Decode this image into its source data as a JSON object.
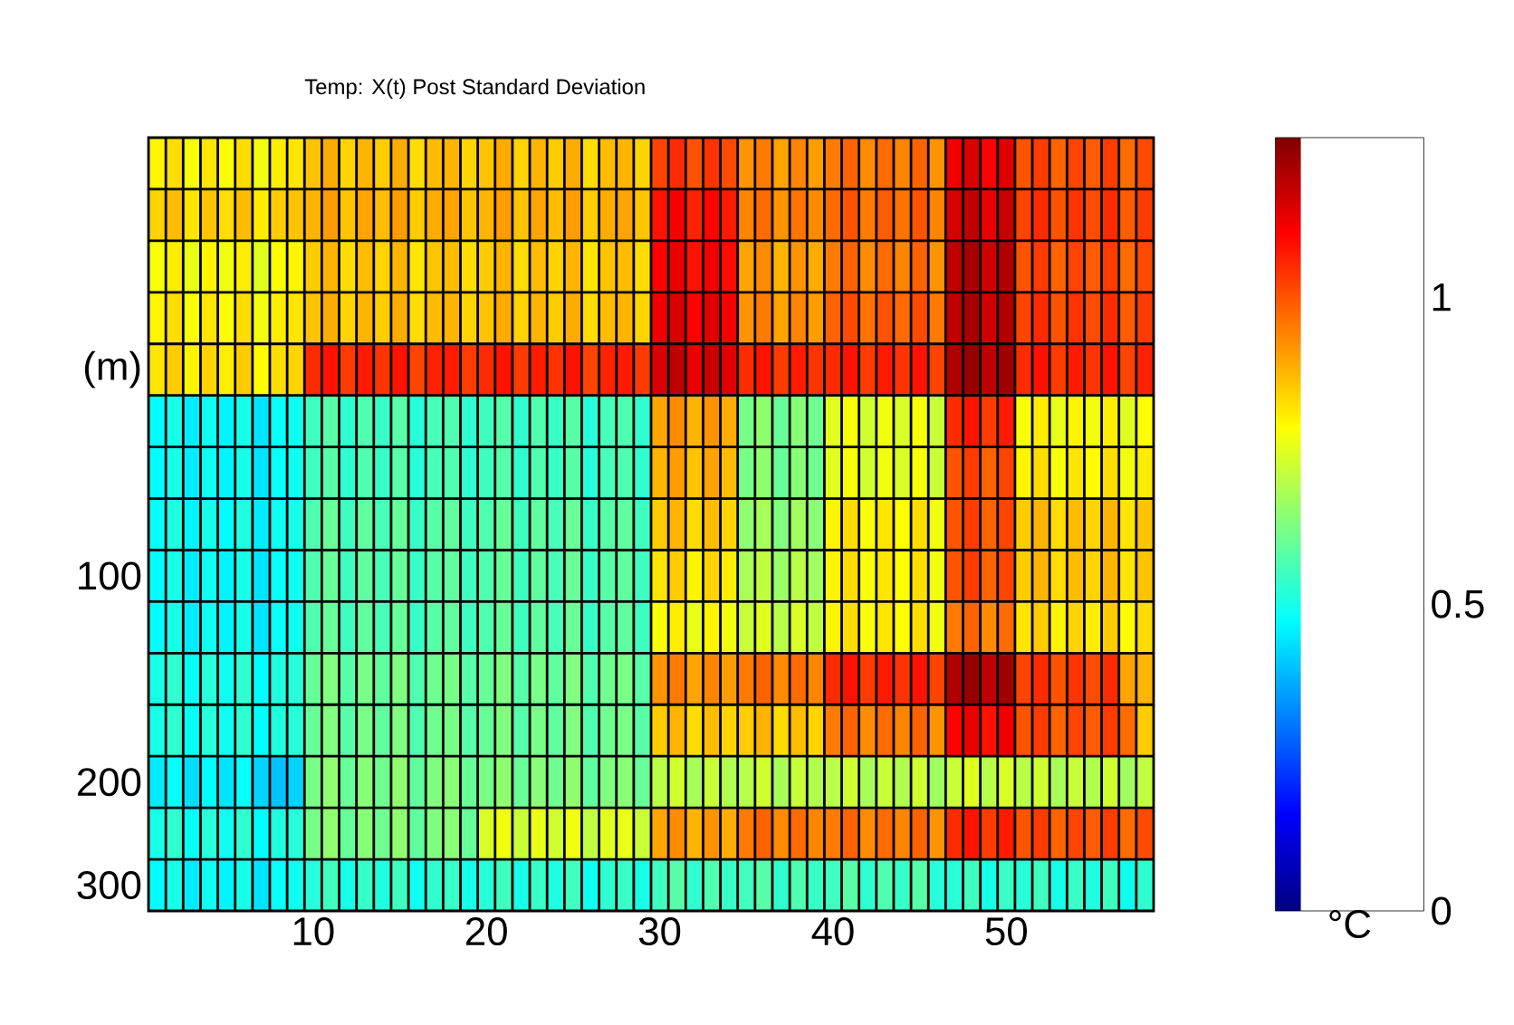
{
  "chart_data": {
    "type": "heatmap",
    "title": "Temp: X(t) Post Standard Deviation",
    "clabel": "°C",
    "categories": [
      null,
      null,
      null,
      null,
      null,
      null,
      null,
      null,
      null,
      "10",
      null,
      null,
      null,
      null,
      null,
      null,
      null,
      null,
      null,
      "20",
      null,
      null,
      null,
      null,
      null,
      null,
      null,
      null,
      null,
      "30",
      null,
      null,
      null,
      null,
      null,
      null,
      null,
      null,
      null,
      "40",
      null,
      null,
      null,
      null,
      null,
      null,
      null,
      null,
      null,
      "50",
      null,
      null,
      null,
      null,
      null,
      null,
      null,
      null
    ],
    "y_categories": [
      null,
      null,
      null,
      null,
      "(m)",
      null,
      null,
      null,
      "100",
      null,
      null,
      null,
      "200",
      null,
      "300"
    ],
    "clim": [
      0,
      1.26
    ],
    "cticks": [
      0,
      0.5,
      1
    ],
    "grid": true,
    "cells": [
      [
        0.8,
        0.83,
        0.78,
        0.82,
        0.79,
        0.83,
        0.77,
        0.81,
        0.82,
        0.86,
        0.89,
        0.84,
        0.88,
        0.85,
        0.89,
        0.83,
        0.87,
        0.88,
        0.84,
        0.86,
        0.89,
        0.84,
        0.88,
        0.85,
        0.89,
        0.83,
        0.87,
        0.88,
        0.84,
        1.02,
        1.05,
        1.0,
        1.04,
        1.01,
        0.92,
        0.95,
        0.9,
        0.94,
        0.91,
        0.95,
        0.98,
        0.93,
        0.97,
        0.94,
        0.98,
        0.92,
        1.12,
        1.15,
        1.1,
        1.14,
        1.0,
        1.03,
        0.98,
        1.02,
        0.99,
        1.03,
        0.97,
        1.01
      ],
      [
        0.84,
        0.87,
        0.82,
        0.86,
        0.83,
        0.87,
        0.81,
        0.85,
        0.86,
        0.88,
        0.91,
        0.86,
        0.9,
        0.87,
        0.91,
        0.85,
        0.89,
        0.9,
        0.86,
        0.88,
        0.91,
        0.86,
        0.9,
        0.87,
        0.91,
        0.85,
        0.89,
        0.9,
        0.86,
        1.08,
        1.11,
        1.06,
        1.1,
        1.07,
        0.94,
        0.97,
        0.92,
        0.96,
        0.93,
        0.97,
        1.0,
        0.95,
        0.99,
        0.96,
        1.0,
        0.94,
        1.15,
        1.18,
        1.13,
        1.17,
        1.02,
        1.05,
        1.0,
        1.04,
        1.01,
        1.05,
        0.99,
        1.03
      ],
      [
        0.78,
        0.81,
        0.76,
        0.8,
        0.77,
        0.81,
        0.75,
        0.79,
        0.8,
        0.85,
        0.88,
        0.83,
        0.87,
        0.84,
        0.88,
        0.82,
        0.86,
        0.87,
        0.83,
        0.85,
        0.88,
        0.83,
        0.87,
        0.84,
        0.88,
        0.82,
        0.86,
        0.87,
        0.83,
        1.1,
        1.13,
        1.08,
        1.12,
        1.09,
        0.9,
        0.93,
        0.88,
        0.92,
        0.89,
        0.95,
        0.98,
        0.93,
        0.97,
        0.94,
        0.98,
        0.92,
        1.18,
        1.21,
        1.16,
        1.2,
        1.0,
        1.03,
        0.98,
        1.02,
        0.99,
        1.03,
        0.97,
        1.01
      ],
      [
        0.8,
        0.83,
        0.78,
        0.82,
        0.79,
        0.83,
        0.77,
        0.81,
        0.82,
        0.86,
        0.89,
        0.84,
        0.88,
        0.85,
        0.89,
        0.83,
        0.87,
        0.88,
        0.84,
        0.86,
        0.89,
        0.84,
        0.88,
        0.85,
        0.89,
        0.83,
        0.87,
        0.88,
        0.84,
        1.12,
        1.15,
        1.1,
        1.14,
        1.11,
        0.92,
        0.95,
        0.9,
        0.94,
        0.91,
        0.98,
        1.01,
        0.96,
        1.0,
        0.97,
        1.01,
        0.95,
        1.18,
        1.21,
        1.16,
        1.2,
        1.02,
        1.05,
        1.0,
        1.04,
        1.01,
        1.05,
        0.99,
        1.03
      ],
      [
        0.82,
        0.85,
        0.8,
        0.84,
        0.81,
        0.85,
        0.79,
        0.83,
        0.84,
        1.05,
        1.08,
        1.03,
        1.07,
        1.04,
        1.08,
        1.02,
        1.06,
        1.07,
        1.03,
        1.05,
        1.08,
        1.03,
        1.07,
        1.04,
        1.08,
        1.02,
        1.06,
        1.07,
        1.03,
        1.15,
        1.18,
        1.13,
        1.17,
        1.14,
        1.05,
        1.08,
        1.03,
        1.07,
        1.04,
        1.05,
        1.08,
        1.03,
        1.07,
        1.04,
        1.08,
        1.02,
        1.2,
        1.23,
        1.18,
        1.22,
        1.05,
        1.08,
        1.03,
        1.07,
        1.04,
        1.08,
        1.02,
        1.06
      ],
      [
        0.47,
        0.5,
        0.45,
        0.49,
        0.46,
        0.5,
        0.44,
        0.48,
        0.49,
        0.55,
        0.58,
        0.53,
        0.57,
        0.54,
        0.58,
        0.52,
        0.56,
        0.57,
        0.53,
        0.55,
        0.58,
        0.53,
        0.57,
        0.54,
        0.58,
        0.52,
        0.56,
        0.57,
        0.53,
        0.9,
        0.93,
        0.88,
        0.92,
        0.89,
        0.62,
        0.65,
        0.6,
        0.64,
        0.61,
        0.75,
        0.78,
        0.73,
        0.77,
        0.74,
        0.78,
        0.72,
        1.05,
        1.08,
        1.03,
        1.07,
        0.78,
        0.81,
        0.76,
        0.8,
        0.77,
        0.81,
        0.75,
        0.79
      ],
      [
        0.47,
        0.5,
        0.45,
        0.49,
        0.46,
        0.5,
        0.44,
        0.48,
        0.49,
        0.55,
        0.58,
        0.53,
        0.57,
        0.54,
        0.58,
        0.52,
        0.56,
        0.57,
        0.53,
        0.55,
        0.58,
        0.53,
        0.57,
        0.54,
        0.58,
        0.52,
        0.56,
        0.57,
        0.53,
        0.88,
        0.91,
        0.86,
        0.9,
        0.87,
        0.62,
        0.65,
        0.6,
        0.64,
        0.61,
        0.75,
        0.78,
        0.73,
        0.77,
        0.74,
        0.78,
        0.72,
        1.0,
        1.03,
        0.98,
        1.02,
        0.8,
        0.83,
        0.78,
        0.82,
        0.79,
        0.83,
        0.77,
        0.81
      ],
      [
        0.48,
        0.51,
        0.46,
        0.5,
        0.47,
        0.51,
        0.45,
        0.49,
        0.5,
        0.57,
        0.6,
        0.55,
        0.59,
        0.56,
        0.6,
        0.54,
        0.58,
        0.59,
        0.55,
        0.57,
        0.6,
        0.55,
        0.59,
        0.56,
        0.6,
        0.54,
        0.58,
        0.59,
        0.55,
        0.85,
        0.88,
        0.83,
        0.87,
        0.84,
        0.65,
        0.68,
        0.63,
        0.67,
        0.64,
        0.8,
        0.83,
        0.78,
        0.82,
        0.79,
        0.83,
        0.77,
        1.0,
        1.03,
        0.98,
        1.02,
        0.85,
        0.88,
        0.83,
        0.87,
        0.84,
        0.88,
        0.82,
        0.86
      ],
      [
        0.47,
        0.5,
        0.45,
        0.49,
        0.46,
        0.5,
        0.44,
        0.48,
        0.49,
        0.57,
        0.6,
        0.55,
        0.59,
        0.56,
        0.6,
        0.54,
        0.58,
        0.59,
        0.55,
        0.57,
        0.6,
        0.55,
        0.59,
        0.56,
        0.6,
        0.54,
        0.58,
        0.59,
        0.55,
        0.82,
        0.85,
        0.8,
        0.84,
        0.81,
        0.68,
        0.71,
        0.66,
        0.7,
        0.67,
        0.8,
        0.83,
        0.78,
        0.82,
        0.79,
        0.83,
        0.77,
        1.0,
        1.03,
        0.98,
        1.02,
        0.85,
        0.88,
        0.83,
        0.87,
        0.84,
        0.88,
        0.82,
        0.86
      ],
      [
        0.47,
        0.5,
        0.45,
        0.49,
        0.46,
        0.5,
        0.44,
        0.48,
        0.49,
        0.57,
        0.6,
        0.55,
        0.59,
        0.56,
        0.6,
        0.54,
        0.58,
        0.59,
        0.55,
        0.57,
        0.6,
        0.55,
        0.59,
        0.56,
        0.6,
        0.54,
        0.58,
        0.59,
        0.55,
        0.78,
        0.81,
        0.76,
        0.8,
        0.77,
        0.72,
        0.75,
        0.7,
        0.74,
        0.71,
        0.8,
        0.83,
        0.78,
        0.82,
        0.79,
        0.83,
        0.77,
        0.95,
        0.98,
        0.93,
        0.97,
        0.82,
        0.85,
        0.8,
        0.84,
        0.81,
        0.85,
        0.79,
        0.83
      ],
      [
        0.5,
        0.53,
        0.48,
        0.52,
        0.49,
        0.53,
        0.47,
        0.51,
        0.52,
        0.6,
        0.63,
        0.58,
        0.62,
        0.59,
        0.63,
        0.57,
        0.61,
        0.62,
        0.58,
        0.6,
        0.63,
        0.58,
        0.62,
        0.59,
        0.63,
        0.57,
        0.61,
        0.62,
        0.58,
        0.92,
        0.95,
        0.9,
        0.94,
        0.91,
        0.95,
        0.98,
        0.93,
        0.97,
        0.94,
        1.05,
        1.08,
        1.03,
        1.07,
        1.04,
        1.08,
        1.02,
        1.2,
        1.23,
        1.18,
        1.22,
        1.02,
        1.05,
        1.0,
        1.04,
        1.01,
        1.05,
        0.9,
        0.88
      ],
      [
        0.5,
        0.53,
        0.48,
        0.52,
        0.49,
        0.53,
        0.47,
        0.51,
        0.52,
        0.6,
        0.63,
        0.58,
        0.62,
        0.59,
        0.63,
        0.57,
        0.61,
        0.62,
        0.58,
        0.6,
        0.63,
        0.58,
        0.62,
        0.59,
        0.63,
        0.57,
        0.61,
        0.62,
        0.58,
        0.85,
        0.88,
        0.83,
        0.87,
        0.84,
        0.85,
        0.88,
        0.83,
        0.87,
        0.84,
        0.95,
        0.98,
        0.93,
        0.97,
        0.94,
        0.98,
        0.92,
        1.1,
        1.13,
        1.08,
        1.12,
        1.0,
        1.03,
        0.98,
        1.02,
        0.99,
        1.03,
        0.97,
        0.85
      ],
      [
        0.45,
        0.48,
        0.43,
        0.47,
        0.44,
        0.48,
        0.42,
        0.4,
        0.42,
        0.62,
        0.65,
        0.6,
        0.64,
        0.61,
        0.65,
        0.59,
        0.63,
        0.64,
        0.6,
        0.62,
        0.65,
        0.6,
        0.64,
        0.61,
        0.65,
        0.59,
        0.63,
        0.64,
        0.6,
        0.7,
        0.73,
        0.68,
        0.72,
        0.69,
        0.7,
        0.73,
        0.68,
        0.72,
        0.69,
        0.7,
        0.73,
        0.68,
        0.72,
        0.69,
        0.73,
        0.67,
        0.72,
        0.75,
        0.7,
        0.74,
        0.7,
        0.73,
        0.68,
        0.72,
        0.69,
        0.73,
        0.67,
        0.71
      ],
      [
        0.5,
        0.53,
        0.48,
        0.52,
        0.49,
        0.53,
        0.47,
        0.51,
        0.52,
        0.62,
        0.65,
        0.6,
        0.64,
        0.61,
        0.65,
        0.59,
        0.63,
        0.64,
        0.6,
        0.74,
        0.77,
        0.72,
        0.76,
        0.73,
        0.77,
        0.71,
        0.75,
        0.76,
        0.72,
        0.9,
        0.93,
        0.88,
        0.92,
        0.89,
        0.95,
        0.98,
        0.93,
        0.97,
        0.94,
        0.95,
        0.98,
        0.93,
        0.97,
        0.94,
        0.98,
        0.92,
        1.05,
        1.08,
        1.03,
        1.07,
        1.0,
        1.03,
        0.98,
        1.02,
        0.99,
        1.03,
        0.97,
        1.01
      ],
      [
        0.47,
        0.5,
        0.45,
        0.49,
        0.46,
        0.5,
        0.44,
        0.48,
        0.49,
        0.52,
        0.55,
        0.5,
        0.54,
        0.51,
        0.55,
        0.49,
        0.53,
        0.54,
        0.5,
        0.52,
        0.55,
        0.5,
        0.54,
        0.51,
        0.55,
        0.49,
        0.53,
        0.54,
        0.5,
        0.55,
        0.58,
        0.53,
        0.57,
        0.54,
        0.55,
        0.58,
        0.53,
        0.57,
        0.54,
        0.55,
        0.58,
        0.53,
        0.57,
        0.54,
        0.58,
        0.52,
        0.52,
        0.55,
        0.5,
        0.54,
        0.52,
        0.55,
        0.5,
        0.54,
        0.51,
        0.55,
        0.49,
        0.53
      ]
    ]
  }
}
